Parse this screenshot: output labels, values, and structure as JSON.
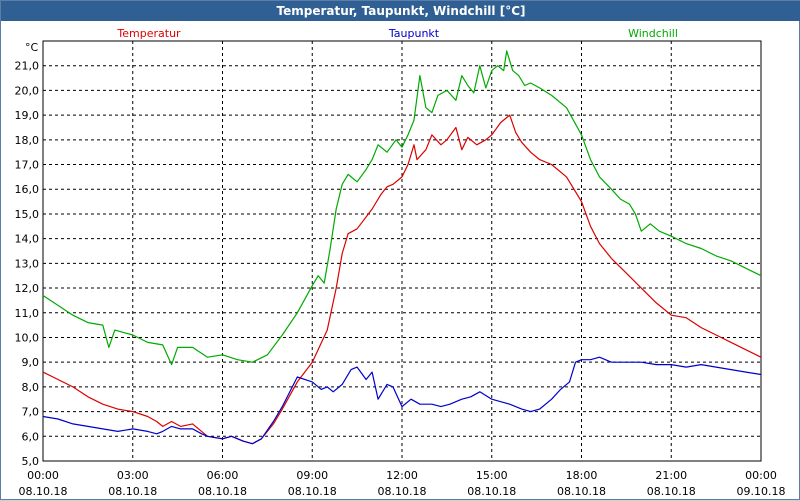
{
  "window": {
    "title": "Temperatur, Taupunkt, Windchill [°C]"
  },
  "chart_data": {
    "type": "line",
    "title": "Temperatur, Taupunkt, Windchill [°C]",
    "ylabel": "°C",
    "ylim": [
      5.0,
      22.0
    ],
    "xlim_hours": [
      0,
      24
    ],
    "grid": true,
    "legend_position": "top",
    "y_ticks": [
      "5,0",
      "6,0",
      "7,0",
      "8,0",
      "9,0",
      "10,0",
      "11,0",
      "12,0",
      "13,0",
      "14,0",
      "15,0",
      "16,0",
      "17,0",
      "18,0",
      "19,0",
      "20,0",
      "21,0"
    ],
    "x_ticks": [
      {
        "time": "00:00",
        "date": "08.10.18"
      },
      {
        "time": "03:00",
        "date": "08.10.18"
      },
      {
        "time": "06:00",
        "date": "08.10.18"
      },
      {
        "time": "09:00",
        "date": "08.10.18"
      },
      {
        "time": "12:00",
        "date": "08.10.18"
      },
      {
        "time": "15:00",
        "date": "08.10.18"
      },
      {
        "time": "18:00",
        "date": "08.10.18"
      },
      {
        "time": "21:00",
        "date": "08.10.18"
      },
      {
        "time": "00:00",
        "date": "09.10.18"
      }
    ],
    "series": [
      {
        "name": "Temperatur",
        "color": "#dd0000",
        "points": [
          [
            0,
            8.6
          ],
          [
            0.5,
            8.3
          ],
          [
            1,
            8.0
          ],
          [
            1.5,
            7.6
          ],
          [
            2,
            7.3
          ],
          [
            2.5,
            7.1
          ],
          [
            3,
            7.0
          ],
          [
            3.5,
            6.8
          ],
          [
            3.8,
            6.6
          ],
          [
            4,
            6.4
          ],
          [
            4.3,
            6.6
          ],
          [
            4.6,
            6.4
          ],
          [
            5,
            6.5
          ],
          [
            5.3,
            6.2
          ],
          [
            5.5,
            6.0
          ],
          [
            6,
            5.9
          ],
          [
            6.3,
            6.0
          ],
          [
            6.7,
            5.8
          ],
          [
            7,
            5.7
          ],
          [
            7.3,
            5.9
          ],
          [
            7.7,
            6.5
          ],
          [
            8,
            7.1
          ],
          [
            8.5,
            8.2
          ],
          [
            9,
            9.0
          ],
          [
            9.5,
            10.3
          ],
          [
            9.8,
            12.0
          ],
          [
            10,
            13.4
          ],
          [
            10.2,
            14.2
          ],
          [
            10.5,
            14.4
          ],
          [
            11,
            15.2
          ],
          [
            11.3,
            15.8
          ],
          [
            11.5,
            16.1
          ],
          [
            11.7,
            16.2
          ],
          [
            12,
            16.5
          ],
          [
            12.2,
            17.0
          ],
          [
            12.4,
            17.8
          ],
          [
            12.5,
            17.2
          ],
          [
            12.8,
            17.6
          ],
          [
            13,
            18.2
          ],
          [
            13.3,
            17.8
          ],
          [
            13.5,
            18.0
          ],
          [
            13.8,
            18.5
          ],
          [
            14,
            17.6
          ],
          [
            14.2,
            18.1
          ],
          [
            14.5,
            17.8
          ],
          [
            14.8,
            18.0
          ],
          [
            15,
            18.2
          ],
          [
            15.3,
            18.7
          ],
          [
            15.6,
            19.0
          ],
          [
            15.8,
            18.3
          ],
          [
            16,
            17.9
          ],
          [
            16.3,
            17.5
          ],
          [
            16.6,
            17.2
          ],
          [
            17,
            17.0
          ],
          [
            17.5,
            16.5
          ],
          [
            18,
            15.5
          ],
          [
            18.3,
            14.5
          ],
          [
            18.6,
            13.8
          ],
          [
            19,
            13.2
          ],
          [
            19.5,
            12.6
          ],
          [
            20,
            12.0
          ],
          [
            20.5,
            11.4
          ],
          [
            21,
            10.9
          ],
          [
            21.5,
            10.8
          ],
          [
            22,
            10.4
          ],
          [
            22.5,
            10.1
          ],
          [
            23,
            9.8
          ],
          [
            23.5,
            9.5
          ],
          [
            24,
            9.2
          ]
        ]
      },
      {
        "name": "Taupunkt",
        "color": "#0000cc",
        "points": [
          [
            0,
            6.8
          ],
          [
            0.5,
            6.7
          ],
          [
            1,
            6.5
          ],
          [
            1.5,
            6.4
          ],
          [
            2,
            6.3
          ],
          [
            2.5,
            6.2
          ],
          [
            3,
            6.3
          ],
          [
            3.5,
            6.2
          ],
          [
            3.8,
            6.1
          ],
          [
            4,
            6.2
          ],
          [
            4.3,
            6.4
          ],
          [
            4.6,
            6.3
          ],
          [
            5,
            6.3
          ],
          [
            5.3,
            6.1
          ],
          [
            5.5,
            6.0
          ],
          [
            6,
            5.9
          ],
          [
            6.3,
            6.0
          ],
          [
            6.7,
            5.8
          ],
          [
            7,
            5.7
          ],
          [
            7.3,
            5.9
          ],
          [
            7.7,
            6.6
          ],
          [
            8,
            7.2
          ],
          [
            8.5,
            8.4
          ],
          [
            9,
            8.2
          ],
          [
            9.3,
            7.9
          ],
          [
            9.5,
            8.0
          ],
          [
            9.7,
            7.8
          ],
          [
            10,
            8.1
          ],
          [
            10.3,
            8.7
          ],
          [
            10.5,
            8.8
          ],
          [
            10.8,
            8.3
          ],
          [
            11,
            8.6
          ],
          [
            11.2,
            7.5
          ],
          [
            11.5,
            8.1
          ],
          [
            11.7,
            8.0
          ],
          [
            12,
            7.2
          ],
          [
            12.3,
            7.5
          ],
          [
            12.6,
            7.3
          ],
          [
            13,
            7.3
          ],
          [
            13.3,
            7.2
          ],
          [
            13.6,
            7.3
          ],
          [
            14,
            7.5
          ],
          [
            14.3,
            7.6
          ],
          [
            14.6,
            7.8
          ],
          [
            15,
            7.5
          ],
          [
            15.3,
            7.4
          ],
          [
            15.6,
            7.3
          ],
          [
            16,
            7.1
          ],
          [
            16.3,
            7.0
          ],
          [
            16.6,
            7.1
          ],
          [
            17,
            7.5
          ],
          [
            17.3,
            7.9
          ],
          [
            17.6,
            8.2
          ],
          [
            17.8,
            9.0
          ],
          [
            18,
            9.1
          ],
          [
            18.3,
            9.1
          ],
          [
            18.6,
            9.2
          ],
          [
            19,
            9.0
          ],
          [
            19.5,
            9.0
          ],
          [
            20,
            9.0
          ],
          [
            20.5,
            8.9
          ],
          [
            21,
            8.9
          ],
          [
            21.5,
            8.8
          ],
          [
            22,
            8.9
          ],
          [
            22.5,
            8.8
          ],
          [
            23,
            8.7
          ],
          [
            23.5,
            8.6
          ],
          [
            24,
            8.5
          ]
        ]
      },
      {
        "name": "Windchill",
        "color": "#00aa00",
        "points": [
          [
            0,
            11.7
          ],
          [
            0.5,
            11.3
          ],
          [
            1,
            10.9
          ],
          [
            1.5,
            10.6
          ],
          [
            2,
            10.5
          ],
          [
            2.2,
            9.6
          ],
          [
            2.4,
            10.3
          ],
          [
            3,
            10.1
          ],
          [
            3.5,
            9.8
          ],
          [
            4,
            9.7
          ],
          [
            4.3,
            8.9
          ],
          [
            4.5,
            9.6
          ],
          [
            5,
            9.6
          ],
          [
            5.5,
            9.2
          ],
          [
            6,
            9.3
          ],
          [
            6.5,
            9.1
          ],
          [
            7,
            9.0
          ],
          [
            7.5,
            9.3
          ],
          [
            8,
            10.1
          ],
          [
            8.5,
            11.0
          ],
          [
            9,
            12.1
          ],
          [
            9.2,
            12.5
          ],
          [
            9.4,
            12.2
          ],
          [
            9.6,
            13.6
          ],
          [
            9.8,
            15.2
          ],
          [
            10,
            16.2
          ],
          [
            10.2,
            16.6
          ],
          [
            10.5,
            16.3
          ],
          [
            10.8,
            16.8
          ],
          [
            11,
            17.2
          ],
          [
            11.2,
            17.8
          ],
          [
            11.5,
            17.5
          ],
          [
            11.8,
            18.0
          ],
          [
            12,
            17.7
          ],
          [
            12.2,
            18.2
          ],
          [
            12.4,
            18.8
          ],
          [
            12.6,
            20.6
          ],
          [
            12.8,
            19.3
          ],
          [
            13,
            19.1
          ],
          [
            13.2,
            19.8
          ],
          [
            13.5,
            20.0
          ],
          [
            13.8,
            19.6
          ],
          [
            14,
            20.6
          ],
          [
            14.2,
            20.2
          ],
          [
            14.4,
            19.9
          ],
          [
            14.6,
            21.0
          ],
          [
            14.8,
            20.1
          ],
          [
            15,
            20.8
          ],
          [
            15.2,
            21.0
          ],
          [
            15.4,
            20.8
          ],
          [
            15.5,
            21.6
          ],
          [
            15.7,
            20.8
          ],
          [
            15.9,
            20.6
          ],
          [
            16.1,
            20.2
          ],
          [
            16.3,
            20.3
          ],
          [
            16.6,
            20.1
          ],
          [
            17,
            19.8
          ],
          [
            17.5,
            19.3
          ],
          [
            18,
            18.2
          ],
          [
            18.3,
            17.2
          ],
          [
            18.6,
            16.5
          ],
          [
            19,
            16.0
          ],
          [
            19.3,
            15.6
          ],
          [
            19.6,
            15.4
          ],
          [
            19.8,
            15.0
          ],
          [
            20,
            14.3
          ],
          [
            20.3,
            14.6
          ],
          [
            20.6,
            14.3
          ],
          [
            21,
            14.1
          ],
          [
            21.5,
            13.8
          ],
          [
            22,
            13.6
          ],
          [
            22.5,
            13.3
          ],
          [
            23,
            13.1
          ],
          [
            23.5,
            12.8
          ],
          [
            24,
            12.5
          ]
        ]
      }
    ]
  }
}
